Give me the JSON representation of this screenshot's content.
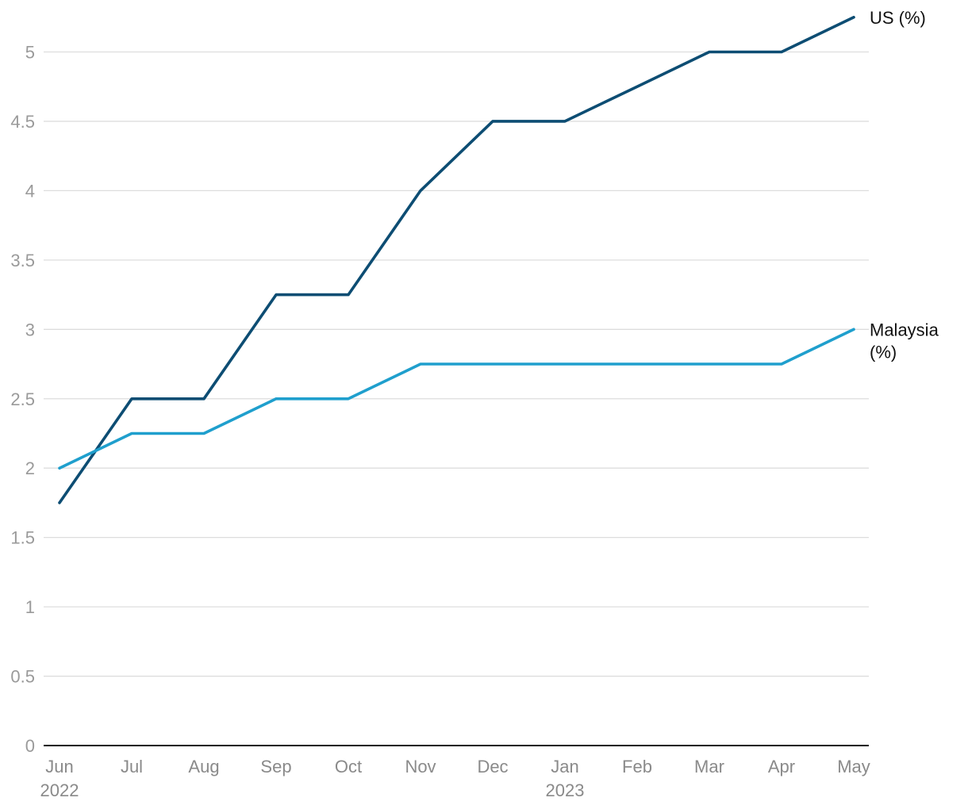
{
  "chart_data": {
    "type": "line",
    "title": "",
    "xlabel": "",
    "ylabel": "",
    "categories": [
      "Jun",
      "Jul",
      "Aug",
      "Sep",
      "Oct",
      "Nov",
      "Dec",
      "Jan",
      "Feb",
      "Mar",
      "Apr",
      "May"
    ],
    "category_years": [
      "2022",
      "",
      "",
      "",
      "",
      "",
      "",
      "2023",
      "",
      "",
      "",
      ""
    ],
    "yticks": [
      "0",
      "0.5",
      "1",
      "1.5",
      "2",
      "2.5",
      "3",
      "3.5",
      "4",
      "4.5",
      "5"
    ],
    "ylim": [
      0,
      5.25
    ],
    "grid": true,
    "legend": "direct labels at line ends",
    "series": [
      {
        "name": "US (%)",
        "label_lines": [
          "US (%)"
        ],
        "color": "#0d4d73",
        "values": [
          1.75,
          2.5,
          2.5,
          3.25,
          3.25,
          4.0,
          4.5,
          4.5,
          4.75,
          5.0,
          5.0,
          5.25
        ]
      },
      {
        "name": "Malaysia (%)",
        "label_lines": [
          "Malaysia",
          "(%)"
        ],
        "color": "#1f9fcd",
        "values": [
          2.0,
          2.25,
          2.25,
          2.5,
          2.5,
          2.75,
          2.75,
          2.75,
          2.75,
          2.75,
          2.75,
          3.0
        ]
      }
    ]
  }
}
